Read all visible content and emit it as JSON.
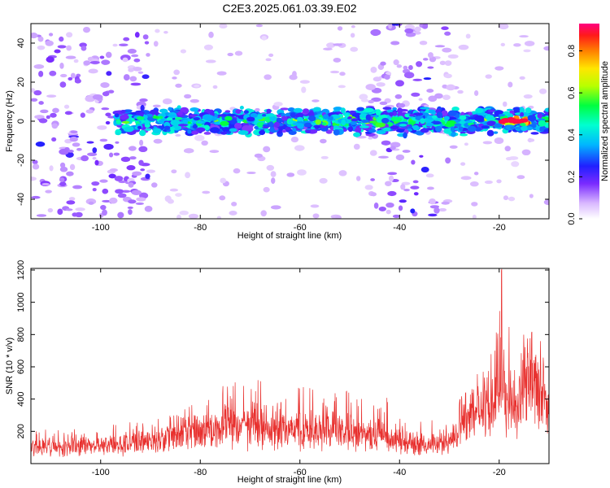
{
  "title": "C2E3.2025.061.03.39.E02",
  "chart_data": [
    {
      "type": "heatmap",
      "xlabel": "Height of straight line (km)",
      "ylabel": "Frequency (Hz)",
      "xlim": [
        -114,
        -10
      ],
      "ylim": [
        -50,
        50
      ],
      "xticks": [
        -100,
        -80,
        -60,
        -40,
        -20
      ],
      "yticks": [
        -40,
        -20,
        0,
        20,
        40
      ],
      "colorbar": {
        "label": "Normalized spectral amplitude",
        "range": [
          0,
          0.93
        ],
        "ticks": [
          0.0,
          0.2,
          0.4,
          0.6,
          0.8
        ],
        "colormap": "rainbow"
      },
      "signal_band": {
        "center_frequency": 0,
        "half_width": 5,
        "strongest_at": [
          -20,
          -14
        ],
        "strongest_amplitude": 0.9
      },
      "noise_regions": [
        [
          -114,
          -90
        ],
        [
          -46,
          -30
        ]
      ]
    },
    {
      "type": "line",
      "xlabel": "Height of straight line (km)",
      "ylabel": "SNR (10 * v/v)",
      "xlim": [
        -114,
        -10
      ],
      "ylim": [
        0,
        1210
      ],
      "xticks": [
        -100,
        -80,
        -60,
        -40,
        -20
      ],
      "yticks": [
        200,
        400,
        600,
        800,
        1000,
        1200
      ],
      "color": "#e8302e",
      "envelope": [
        {
          "x": -114,
          "baseline": 90,
          "peak": 210
        },
        {
          "x": -100,
          "baseline": 95,
          "peak": 230
        },
        {
          "x": -90,
          "baseline": 120,
          "peak": 280
        },
        {
          "x": -85,
          "baseline": 180,
          "peak": 370
        },
        {
          "x": -78,
          "baseline": 200,
          "peak": 440
        },
        {
          "x": -72,
          "baseline": 200,
          "peak": 600
        },
        {
          "x": -65,
          "baseline": 190,
          "peak": 480
        },
        {
          "x": -58,
          "baseline": 170,
          "peak": 490
        },
        {
          "x": -50,
          "baseline": 150,
          "peak": 450
        },
        {
          "x": -42,
          "baseline": 120,
          "peak": 410
        },
        {
          "x": -35,
          "baseline": 90,
          "peak": 260
        },
        {
          "x": -30,
          "baseline": 120,
          "peak": 290
        },
        {
          "x": -27,
          "baseline": 260,
          "peak": 460
        },
        {
          "x": -24,
          "baseline": 350,
          "peak": 640
        },
        {
          "x": -21,
          "baseline": 380,
          "peak": 780
        },
        {
          "x": -19.5,
          "baseline": 420,
          "peak": 1210
        },
        {
          "x": -17,
          "baseline": 330,
          "peak": 620
        },
        {
          "x": -15,
          "baseline": 520,
          "peak": 820
        },
        {
          "x": -13,
          "baseline": 550,
          "peak": 960
        },
        {
          "x": -11,
          "baseline": 330,
          "peak": 650
        },
        {
          "x": -10,
          "baseline": 380,
          "peak": 640
        }
      ]
    }
  ]
}
